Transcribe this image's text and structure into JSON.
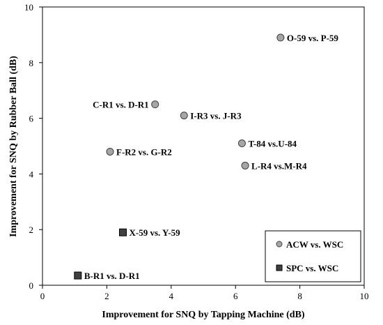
{
  "chart_data": {
    "type": "scatter",
    "xlabel": "Improvement for SNQ by Tapping Machine (dB)",
    "ylabel": "Improvement for SNQ by Rubber Ball (dB)",
    "xlim": [
      0,
      10
    ],
    "ylim": [
      0,
      10
    ],
    "x_ticks": [
      "0",
      "2",
      "4",
      "6",
      "8",
      "10"
    ],
    "y_ticks": [
      "0",
      "2",
      "4",
      "6",
      "8",
      "10"
    ],
    "grid": false,
    "legend_position": "bottom-right",
    "series": [
      {
        "name": "ACW vs. WSC",
        "marker": "circle",
        "color": "#a6a6a6",
        "points": [
          {
            "x": 7.4,
            "y": 8.9,
            "label": "O-59  vs. P-59"
          },
          {
            "x": 3.5,
            "y": 6.5,
            "label": "C-R1  vs. D-R1"
          },
          {
            "x": 4.4,
            "y": 6.1,
            "label": "I-R3 vs. J-R3"
          },
          {
            "x": 6.2,
            "y": 5.1,
            "label": "T-84  vs.U-84"
          },
          {
            "x": 6.3,
            "y": 4.3,
            "label": "L-R4  vs.M-R4"
          },
          {
            "x": 2.1,
            "y": 4.8,
            "label": "F-R2  vs. G-R2"
          }
        ]
      },
      {
        "name": "SPC vs. WSC",
        "marker": "square",
        "color": "#404040",
        "points": [
          {
            "x": 2.5,
            "y": 1.9,
            "label": "X-59  vs. Y-59"
          },
          {
            "x": 1.1,
            "y": 0.35,
            "label": "B-R1 vs. D-R1"
          }
        ]
      }
    ]
  }
}
